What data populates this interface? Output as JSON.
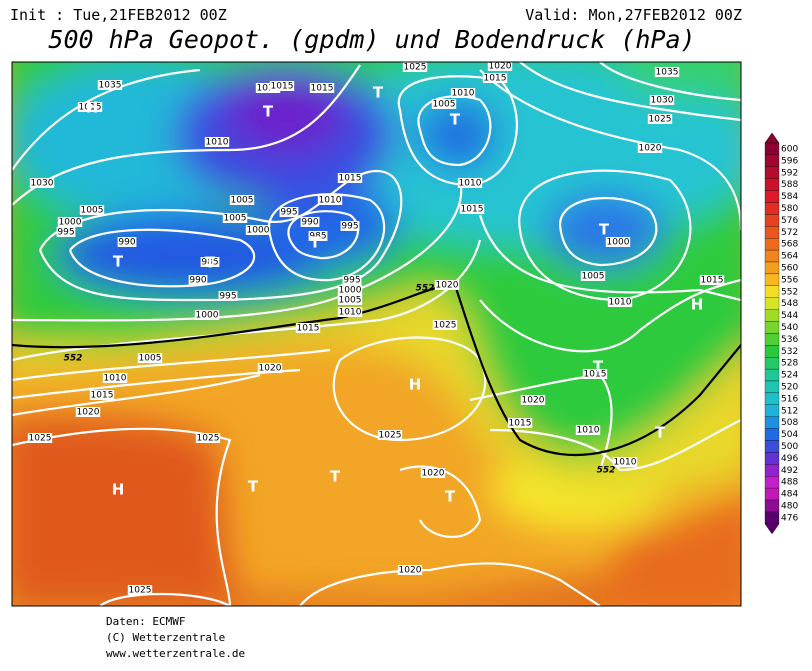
{
  "header": {
    "init": "Init : Tue,21FEB2012 00Z",
    "valid": "Valid: Mon,27FEB2012 00Z",
    "title": "500 hPa Geopot. (gpdm) und Bodendruck (hPa)"
  },
  "isobar_labels": [
    "1035",
    "1015",
    "1010",
    "1015",
    "1015",
    "1025",
    "1020",
    "1015",
    "1010",
    "1005",
    "1035",
    "1030",
    "1025",
    "1020",
    "1010",
    "1030",
    "1005",
    "1000",
    "995",
    "990",
    "1005",
    "995",
    "1010",
    "1015",
    "990",
    "1000",
    "985",
    "995",
    "1005",
    "1010",
    "1015",
    "995",
    "1000",
    "1005",
    "1010",
    "985",
    "990",
    "995",
    "1000",
    "1020",
    "1025",
    "1000",
    "1005",
    "1010",
    "1015",
    "1015",
    "1005",
    "1010",
    "1015",
    "1020",
    "1020",
    "1025",
    "1025",
    "1025",
    "1020",
    "1015",
    "1015",
    "1010",
    "1010",
    "1020",
    "1020",
    "1025"
  ],
  "contour_552_labels": [
    "552",
    "552",
    "552"
  ],
  "pressure_centers": [
    "T",
    "T",
    "T",
    "T",
    "T",
    "T",
    "T",
    "H",
    "H",
    "T",
    "H",
    "T",
    "H",
    "T",
    "T",
    "T"
  ],
  "colorbar": {
    "labels": [
      600,
      596,
      592,
      588,
      584,
      580,
      576,
      572,
      568,
      564,
      560,
      556,
      552,
      548,
      544,
      540,
      536,
      532,
      528,
      524,
      520,
      516,
      512,
      508,
      504,
      500,
      496,
      492,
      488,
      484,
      480,
      476
    ]
  },
  "footer": {
    "source": "Daten: ECMWF",
    "copyright": "(C) Wetterzentrale",
    "url": "www.wetterzentrale.de"
  }
}
